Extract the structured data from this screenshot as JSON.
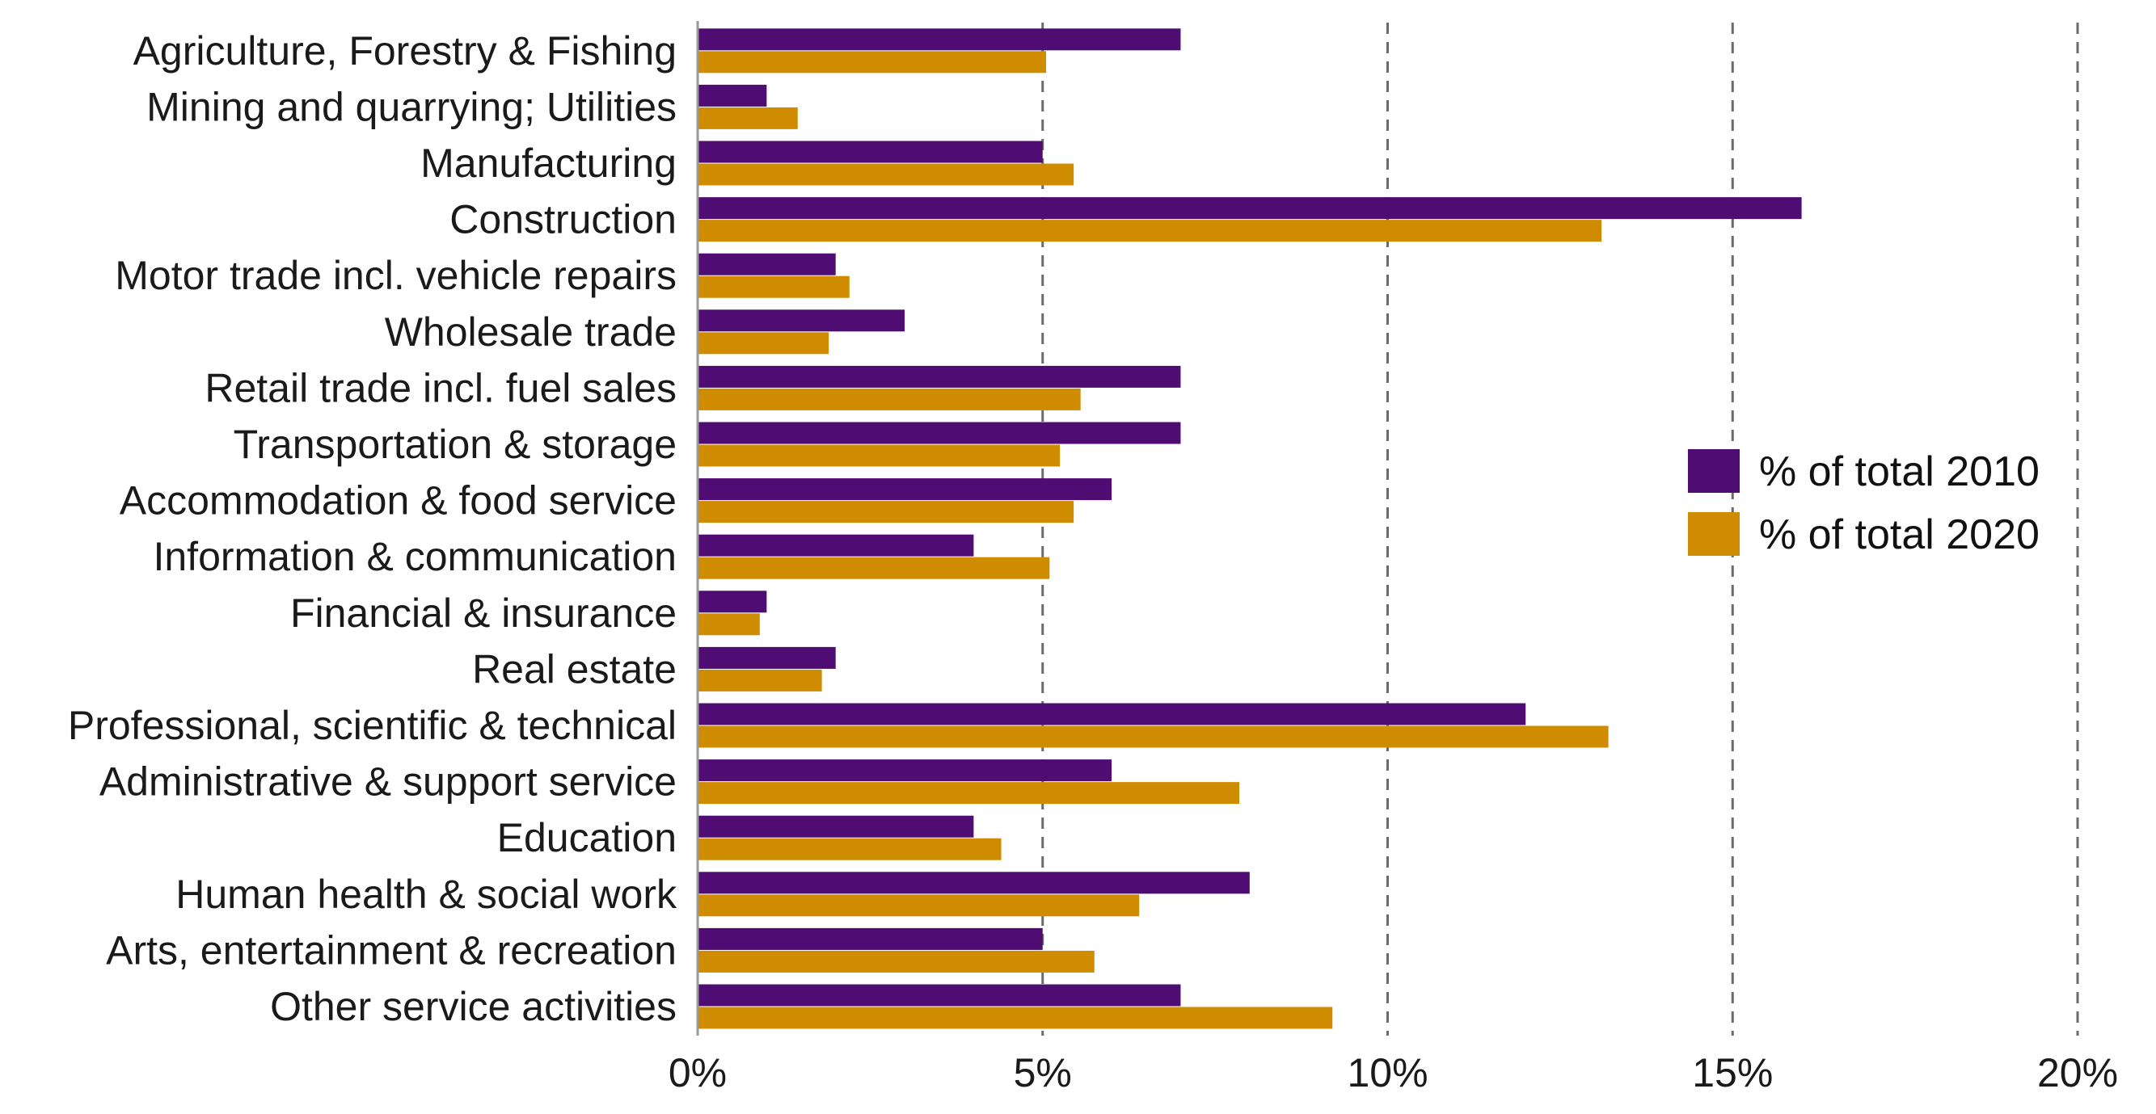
{
  "chart_data": {
    "type": "bar",
    "orientation": "horizontal",
    "title": "",
    "xlabel": "",
    "ylabel": "",
    "categories": [
      "Agriculture, Forestry & Fishing",
      "Mining and quarrying; Utilities",
      "Manufacturing",
      "Construction",
      "Motor trade incl. vehicle repairs",
      "Wholesale trade",
      "Retail trade incl. fuel sales",
      "Transportation & storage",
      "Accommodation & food service",
      "Information & communication",
      "Financial & insurance",
      "Real estate",
      "Professional, scientific & technical",
      "Administrative & support service",
      "Education",
      "Human health & social work",
      "Arts, entertainment & recreation",
      "Other service activities"
    ],
    "series": [
      {
        "name": "% of total 2010",
        "color": "#4f0c73",
        "values": [
          7,
          1,
          5,
          16,
          2,
          3,
          7,
          7,
          6,
          4,
          1,
          2,
          12,
          6,
          4,
          8,
          5,
          7
        ]
      },
      {
        "name": "% of total 2020",
        "color": "#d08c00",
        "values": [
          5.05,
          1.45,
          5.45,
          13.1,
          2.2,
          1.9,
          5.55,
          5.25,
          5.45,
          5.1,
          0.9,
          1.8,
          13.2,
          7.85,
          4.4,
          6.4,
          5.75,
          9.2
        ]
      }
    ],
    "xlim": [
      0,
      20
    ],
    "xticks": [
      0,
      5,
      10,
      15,
      20
    ],
    "tick_labels": [
      "0%",
      "5%",
      "10%",
      "15%",
      "20%"
    ],
    "grid": "vertical dashed",
    "legend_position": "right"
  }
}
